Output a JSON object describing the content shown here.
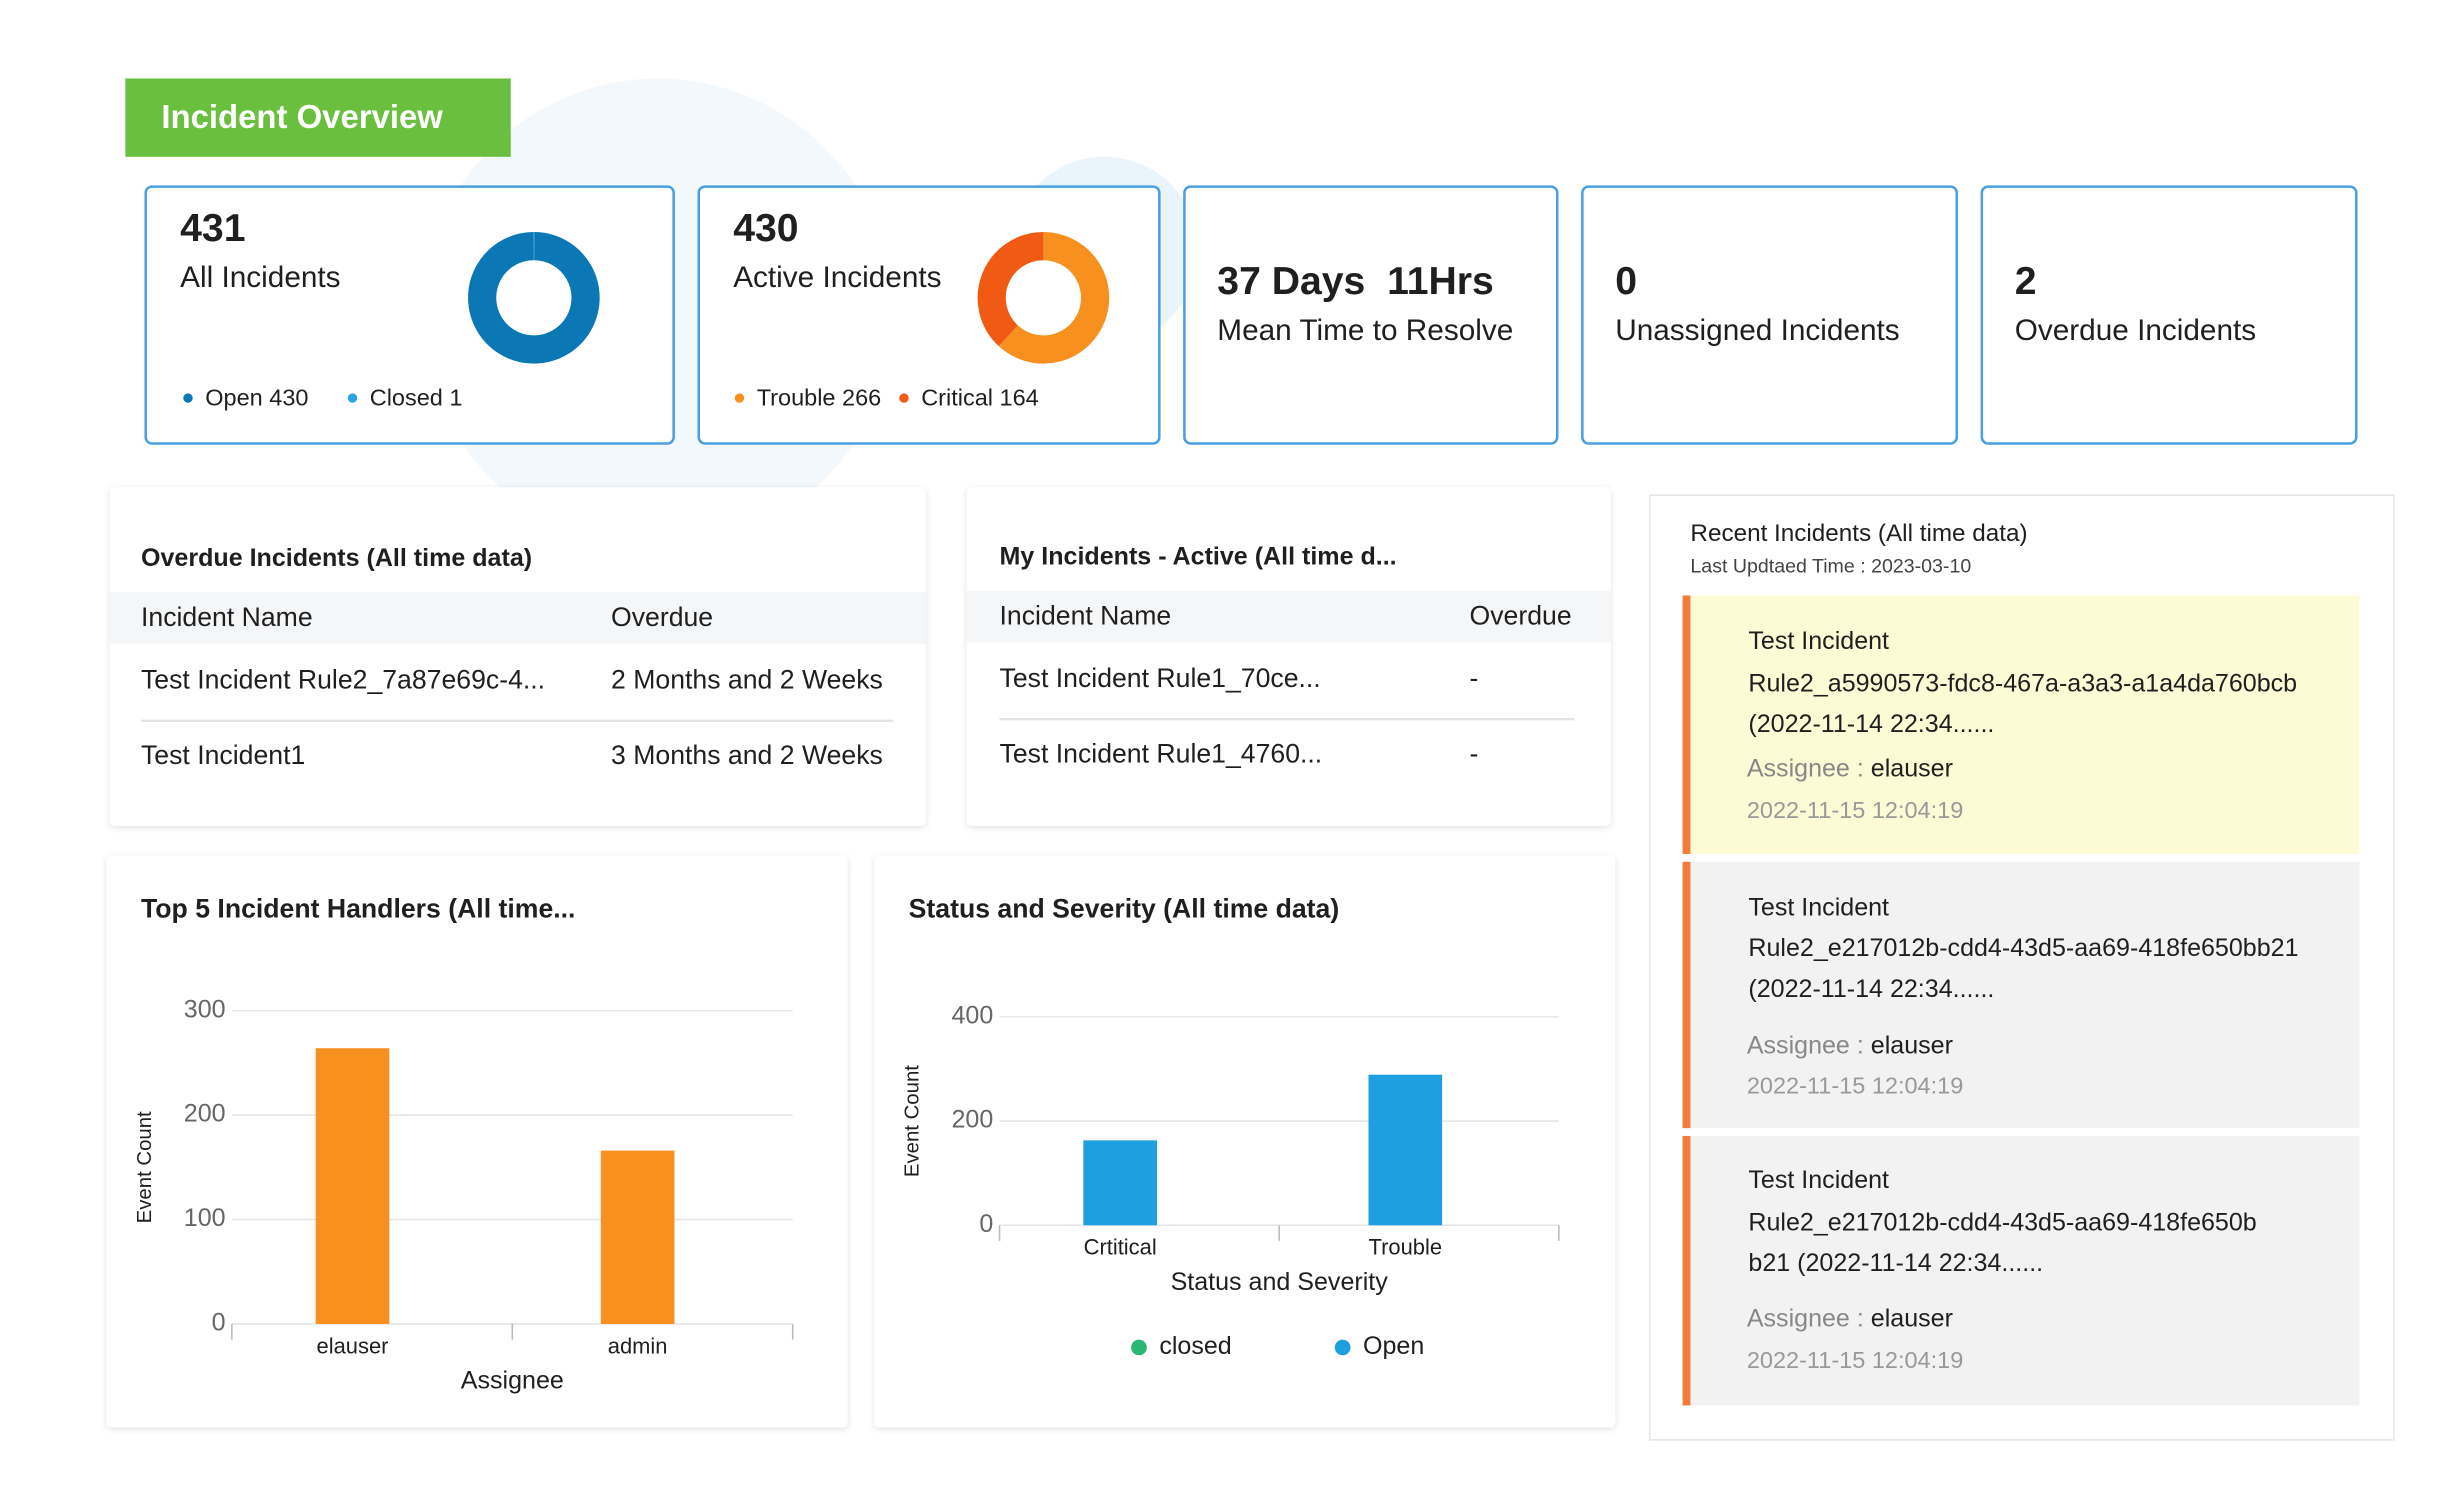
{
  "header": {
    "title": "Incident Overview"
  },
  "cards": [
    {
      "value": "37 Days  11Hrs",
      "label": "Mean Time to Resolve"
    },
    {
      "value": 0,
      "label": "Unassigned Incidents"
    },
    {
      "value": 2,
      "label": "Overdue Incidents"
    }
  ],
  "tables": [
    {
      "title": "Overdue Incidents (All time data)",
      "columns": [
        "Incident Name",
        "Overdue"
      ],
      "rows": [
        [
          "Test Incident Rule2_7a87e69c-4...",
          "2 Months and 2 Weeks"
        ],
        [
          "Test Incident1",
          "3 Months and 2 Weeks"
        ]
      ]
    },
    {
      "title": "My Incidents - Active (All time d...",
      "columns": [
        "Incident Name",
        "Overdue"
      ],
      "rows": [
        [
          "Test Incident Rule1_70ce...",
          "-"
        ],
        [
          "Test Incident Rule1_4760...",
          "-"
        ]
      ]
    }
  ],
  "recent": {
    "title": "Recent Incidents (All time data)",
    "subtitle": "Last Updtaed Time : 2023-03-10",
    "items": [
      {
        "lines": [
          "Test Incident",
          "Rule2_a5990573-fdc8-467a-a3a3-a1a4da760bcb",
          "(2022-11-14 22:34......"
        ],
        "assignee_label": "Assignee :",
        "assignee": "elauser",
        "time": "2022-11-15 12:04:19"
      },
      {
        "lines": [
          "Test Incident",
          "Rule2_e217012b-cdd4-43d5-aa69-418fe650bb21",
          "(2022-11-14 22:34......"
        ],
        "assignee_label": "Assignee :",
        "assignee": "elauser",
        "time": "2022-11-15 12:04:19"
      },
      {
        "lines": [
          "Test Incident",
          "Rule2_e217012b-cdd4-43d5-aa69-418fe650b",
          "b21 (2022-11-14 22:34......"
        ],
        "assignee_label": "Assignee :",
        "assignee": "elauser",
        "time": "2022-11-15 12:04:19"
      }
    ]
  },
  "chart_data": [
    {
      "type": "pie",
      "title": "All Incidents",
      "total": 431,
      "categories": [
        "Open",
        "Closed"
      ],
      "values": [
        430,
        1
      ],
      "colors": [
        "#0c77b5",
        "#2ea3e3"
      ]
    },
    {
      "type": "pie",
      "title": "Active Incidents",
      "total": 430,
      "categories": [
        "Trouble",
        "Critical"
      ],
      "values": [
        266,
        164
      ],
      "colors": [
        "#f7901e",
        "#f05a14"
      ]
    },
    {
      "type": "bar",
      "title": "Top 5 Incident Handlers (All time...",
      "categories": [
        "elauser",
        "admin"
      ],
      "values": [
        264,
        166
      ],
      "color": "#f7901e",
      "xlabel": "Assignee",
      "ylabel": "Event Count",
      "ylim": [
        0,
        300
      ],
      "yticks": [
        0,
        100,
        200,
        300
      ],
      "grid": true
    },
    {
      "type": "bar",
      "title": "Status and Severity (All time data)",
      "categories": [
        "Crtitical",
        "Trouble"
      ],
      "series": [
        {
          "name": "closed",
          "color": "#2bb673",
          "values": [
            0,
            0
          ]
        },
        {
          "name": "Open",
          "color": "#1e9fe0",
          "values": [
            163,
            289
          ]
        }
      ],
      "xlabel": "Status and Severity",
      "ylabel": "Event Count",
      "ylim": [
        0,
        400
      ],
      "yticks": [
        0,
        200,
        400
      ],
      "grid": true,
      "legend": "bottom"
    }
  ]
}
